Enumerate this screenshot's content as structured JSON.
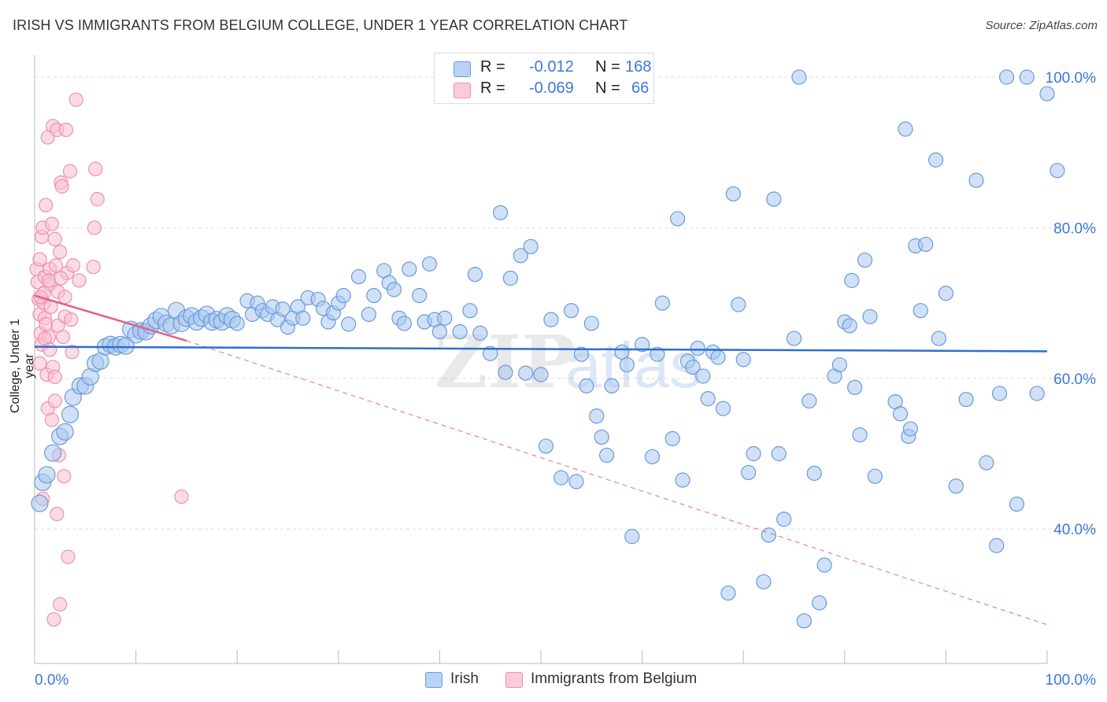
{
  "header": {
    "title": "IRISH VS IMMIGRANTS FROM BELGIUM COLLEGE, UNDER 1 YEAR CORRELATION CHART",
    "source": "Source: ZipAtlas.com"
  },
  "legend": {
    "rows": [
      {
        "r_label": "R =",
        "r_value": "-0.012",
        "n_label": "N =",
        "n_value": "168"
      },
      {
        "r_label": "R =",
        "r_value": "-0.069",
        "n_label": "N =",
        "n_value": "66"
      }
    ]
  },
  "watermark": {
    "zip": "ZIP",
    "atlas": "atlas"
  },
  "colors": {
    "irish_fill": "#a9c8f0",
    "irish_stroke": "#6a9ad8",
    "irish_line": "#2e6fcf",
    "belgium_fill": "#f7bfd0",
    "belgium_stroke": "#ee90ac",
    "belgium_line": "#e0608a",
    "axis_label": "#3b78d8",
    "grid": "#dddddd"
  },
  "chart_data": {
    "type": "scatter",
    "title": "IRISH VS IMMIGRANTS FROM BELGIUM COLLEGE, UNDER 1 YEAR CORRELATION CHART",
    "xlabel": "",
    "ylabel": "College, Under 1 year",
    "xlim": [
      0,
      100
    ],
    "ylim": [
      20,
      102
    ],
    "x_tick_labels": [
      "0.0%",
      "100.0%"
    ],
    "y_ticks": [
      40,
      60,
      80,
      100
    ],
    "y_tick_labels": [
      "40.0%",
      "60.0%",
      "80.0%",
      "100.0%"
    ],
    "grid": true,
    "legend_position": "top-center",
    "series": [
      {
        "name": "Irish",
        "trend": {
          "x": [
            0,
            100
          ],
          "y": [
            64.2,
            63.6
          ]
        },
        "points": [
          [
            0.5,
            43.4
          ],
          [
            0.8,
            46.2
          ],
          [
            1.2,
            47.2
          ],
          [
            1.8,
            50.1
          ],
          [
            2.5,
            52.3
          ],
          [
            3,
            52.9
          ],
          [
            3.5,
            55.2
          ],
          [
            3.8,
            57.5
          ],
          [
            4.5,
            59
          ],
          [
            5,
            59
          ],
          [
            5.5,
            60.2
          ],
          [
            6,
            62
          ],
          [
            6.5,
            62.3
          ],
          [
            7,
            64.2
          ],
          [
            7.5,
            64.5
          ],
          [
            8,
            64.2
          ],
          [
            8.5,
            64.5
          ],
          [
            9,
            64.3
          ],
          [
            9.5,
            66.5
          ],
          [
            10,
            65.8
          ],
          [
            10.5,
            66.3
          ],
          [
            11,
            66.2
          ],
          [
            11.5,
            67
          ],
          [
            12,
            67.7
          ],
          [
            12.5,
            68.2
          ],
          [
            13,
            67.3
          ],
          [
            13.5,
            67
          ],
          [
            14,
            69
          ],
          [
            14.5,
            67.3
          ],
          [
            15,
            68
          ],
          [
            15.5,
            68.3
          ],
          [
            16,
            67.5
          ],
          [
            16.5,
            68
          ],
          [
            17,
            68.5
          ],
          [
            17.5,
            67.5
          ],
          [
            18,
            67.8
          ],
          [
            18.5,
            67.5
          ],
          [
            19,
            68.3
          ],
          [
            19.5,
            67.8
          ],
          [
            20,
            67.3
          ],
          [
            21,
            70.3
          ],
          [
            21.5,
            68.5
          ],
          [
            22,
            70
          ],
          [
            22.5,
            69
          ],
          [
            23,
            68.5
          ],
          [
            23.5,
            69.5
          ],
          [
            24,
            67.8
          ],
          [
            24.5,
            69.2
          ],
          [
            25,
            66.8
          ],
          [
            25.5,
            68
          ],
          [
            26,
            69.5
          ],
          [
            26.5,
            68
          ],
          [
            27,
            70.7
          ],
          [
            28,
            70.5
          ],
          [
            28.5,
            69.3
          ],
          [
            29,
            67.5
          ],
          [
            29.5,
            68.7
          ],
          [
            30,
            70
          ],
          [
            30.5,
            71
          ],
          [
            31,
            67.2
          ],
          [
            32,
            73.5
          ],
          [
            33,
            68.5
          ],
          [
            33.5,
            71
          ],
          [
            34.5,
            74.3
          ],
          [
            35,
            72.7
          ],
          [
            35.5,
            71.8
          ],
          [
            36,
            68
          ],
          [
            36.5,
            67.3
          ],
          [
            37,
            74.5
          ],
          [
            38,
            71
          ],
          [
            38.5,
            67.5
          ],
          [
            39,
            75.2
          ],
          [
            39.5,
            67.8
          ],
          [
            40,
            66.2
          ],
          [
            40.5,
            68
          ],
          [
            42,
            66.2
          ],
          [
            43,
            69
          ],
          [
            43.5,
            73.8
          ],
          [
            44,
            66
          ],
          [
            45,
            63.3
          ],
          [
            46,
            82
          ],
          [
            46.5,
            60.8
          ],
          [
            47,
            73.3
          ],
          [
            48,
            76.3
          ],
          [
            48.5,
            60.7
          ],
          [
            49,
            77.5
          ],
          [
            50,
            60.5
          ],
          [
            50.5,
            51
          ],
          [
            51,
            67.8
          ],
          [
            52,
            46.8
          ],
          [
            53,
            69
          ],
          [
            53.5,
            46.3
          ],
          [
            54,
            63.2
          ],
          [
            54.5,
            59
          ],
          [
            55,
            67.3
          ],
          [
            55.5,
            55
          ],
          [
            56,
            52.2
          ],
          [
            56.5,
            49.8
          ],
          [
            57,
            59
          ],
          [
            58,
            63.5
          ],
          [
            58.5,
            61.8
          ],
          [
            59,
            39
          ],
          [
            60,
            64.5
          ],
          [
            61,
            49.6
          ],
          [
            61.5,
            63.2
          ],
          [
            62,
            70
          ],
          [
            63,
            52
          ],
          [
            63.5,
            81.2
          ],
          [
            64,
            46.5
          ],
          [
            64.5,
            62.3
          ],
          [
            65,
            61.5
          ],
          [
            65.5,
            64
          ],
          [
            66,
            60.3
          ],
          [
            66.5,
            57.3
          ],
          [
            67,
            63.5
          ],
          [
            67.5,
            62.8
          ],
          [
            68,
            56
          ],
          [
            68.5,
            31.5
          ],
          [
            69,
            84.5
          ],
          [
            69.5,
            69.8
          ],
          [
            70,
            62.5
          ],
          [
            70.5,
            47.5
          ],
          [
            71,
            50
          ],
          [
            72,
            33
          ],
          [
            72.5,
            39.2
          ],
          [
            73,
            83.8
          ],
          [
            73.5,
            50
          ],
          [
            74,
            41.3
          ],
          [
            75,
            65.3
          ],
          [
            75.5,
            100
          ],
          [
            76,
            27.8
          ],
          [
            76.5,
            57
          ],
          [
            77,
            47.4
          ],
          [
            77.5,
            30.2
          ],
          [
            78,
            35.2
          ],
          [
            79,
            60.3
          ],
          [
            79.5,
            61.8
          ],
          [
            80,
            67.5
          ],
          [
            80.5,
            67
          ],
          [
            80.7,
            73
          ],
          [
            81,
            58.8
          ],
          [
            81.5,
            52.5
          ],
          [
            82,
            75.7
          ],
          [
            82.5,
            68.2
          ],
          [
            83,
            47
          ],
          [
            85,
            56.9
          ],
          [
            85.5,
            55.3
          ],
          [
            86,
            93.1
          ],
          [
            86.3,
            52.3
          ],
          [
            86.5,
            53.3
          ],
          [
            87,
            77.6
          ],
          [
            87.5,
            69
          ],
          [
            88,
            77.8
          ],
          [
            89,
            89
          ],
          [
            89.3,
            65.3
          ],
          [
            90,
            71.3
          ],
          [
            91,
            45.7
          ],
          [
            92,
            57.2
          ],
          [
            93,
            86.3
          ],
          [
            94,
            48.8
          ],
          [
            95,
            37.8
          ],
          [
            95.3,
            58
          ],
          [
            96,
            100
          ],
          [
            97,
            43.3
          ],
          [
            98,
            100
          ],
          [
            99,
            58
          ],
          [
            100,
            97.8
          ],
          [
            101,
            87.6
          ]
        ]
      },
      {
        "name": "Immigrants from Belgium",
        "trend": {
          "x": [
            0,
            15
          ],
          "y": [
            71,
            65
          ]
        },
        "trend_dashed": {
          "x": [
            15,
            100
          ],
          "y": [
            65,
            27.3
          ]
        },
        "points": [
          [
            0.2,
            74.5
          ],
          [
            0.3,
            72.8
          ],
          [
            0.4,
            70.5
          ],
          [
            0.5,
            75.8
          ],
          [
            0.5,
            68.5
          ],
          [
            0.5,
            62
          ],
          [
            0.6,
            66
          ],
          [
            0.7,
            78.8
          ],
          [
            0.7,
            64.5
          ],
          [
            0.8,
            44
          ],
          [
            0.8,
            80
          ],
          [
            0.9,
            70
          ],
          [
            1,
            73.5
          ],
          [
            1,
            68
          ],
          [
            1.1,
            83
          ],
          [
            1.1,
            67.2
          ],
          [
            1.2,
            60.5
          ],
          [
            1.3,
            92
          ],
          [
            1.3,
            56
          ],
          [
            1.4,
            65.5
          ],
          [
            1.5,
            72.5
          ],
          [
            1.5,
            74.5
          ],
          [
            1.6,
            69.5
          ],
          [
            1.7,
            80.5
          ],
          [
            1.7,
            54.5
          ],
          [
            1.8,
            93.5
          ],
          [
            1.8,
            61.5
          ],
          [
            1.9,
            28
          ],
          [
            2,
            78.5
          ],
          [
            2,
            60.2
          ],
          [
            2.1,
            75
          ],
          [
            2.2,
            93
          ],
          [
            2.2,
            42
          ],
          [
            2.3,
            71.5
          ],
          [
            2.3,
            67
          ],
          [
            2.4,
            49.8
          ],
          [
            2.5,
            76.8
          ],
          [
            2.5,
            30
          ],
          [
            2.6,
            86
          ],
          [
            2.7,
            85.5
          ],
          [
            2.8,
            65.5
          ],
          [
            2.9,
            47
          ],
          [
            3,
            68.2
          ],
          [
            3.1,
            93
          ],
          [
            3.2,
            74
          ],
          [
            3.3,
            36.3
          ],
          [
            3.5,
            87.5
          ],
          [
            3.6,
            67.8
          ],
          [
            3.7,
            63.5
          ],
          [
            3.8,
            75
          ],
          [
            4.1,
            97
          ],
          [
            4.4,
            73
          ],
          [
            5.8,
            74.8
          ],
          [
            5.9,
            80
          ],
          [
            6,
            87.8
          ],
          [
            6.2,
            83.8
          ],
          [
            10.5,
            66.5
          ],
          [
            14.5,
            44.3
          ],
          [
            1,
            65.3
          ],
          [
            1.5,
            63.8
          ],
          [
            0.9,
            71.3
          ],
          [
            2,
            57
          ],
          [
            1.4,
            73
          ],
          [
            0.6,
            70.8
          ],
          [
            3,
            70.8
          ],
          [
            2.6,
            73.3
          ]
        ]
      }
    ]
  },
  "bottom_legend": {
    "items": [
      "Irish",
      "Immigrants from Belgium"
    ]
  }
}
